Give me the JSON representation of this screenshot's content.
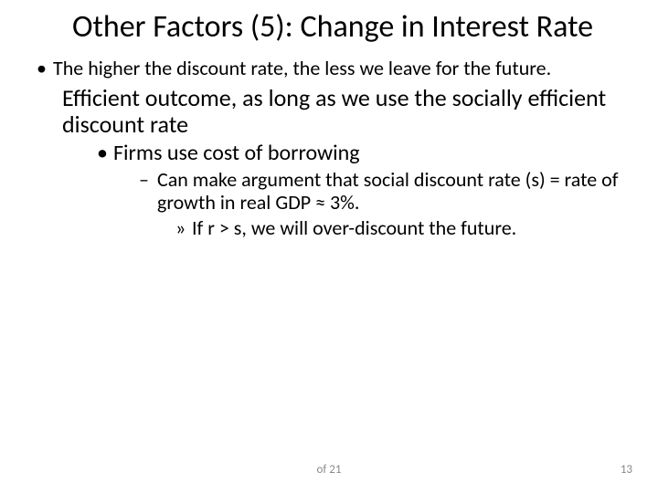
{
  "title": "Other Factors (5): Change in Interest Rate",
  "bullets": {
    "p1": "The higher the discount rate, the less we leave for the future.",
    "p2": "Efficient outcome, as long as we use the socially efficient discount rate",
    "p3": "Firms use cost of borrowing",
    "p4": "Can make argument that social discount rate (s) = rate of growth in real GDP ≈ 3%.",
    "p5": "If r > s, we will over-discount the future."
  },
  "footer": {
    "center": "of 21",
    "page": "13"
  },
  "style": {
    "background": "#ffffff",
    "text_color": "#000000",
    "footer_color": "#8a8a8a",
    "title_fontsize": 34,
    "lvl1_fontsize": 22,
    "lvl2_fontsize": 26,
    "lvl3_fontsize": 24,
    "lvl4_fontsize": 22,
    "lvl5_fontsize": 22
  }
}
